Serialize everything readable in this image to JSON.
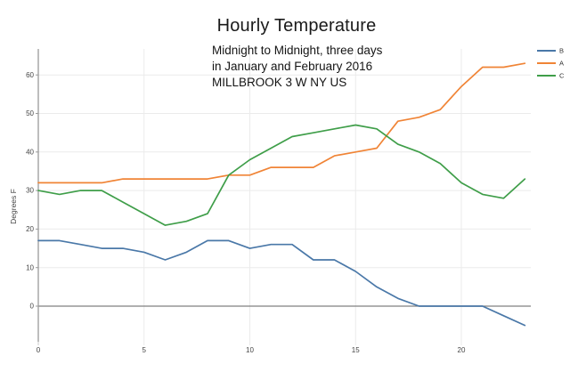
{
  "title": "Hourly Temperature",
  "chart_data": {
    "type": "line",
    "title": "Hourly Temperature",
    "subtitle_lines": [
      "Midnight to Midnight, three days",
      "in January and February 2016",
      "MILLBROOK 3 W NY US"
    ],
    "xlabel": "",
    "ylabel": "Degrees F",
    "x": [
      0,
      1,
      2,
      3,
      4,
      5,
      6,
      7,
      8,
      9,
      10,
      11,
      12,
      13,
      14,
      15,
      16,
      17,
      18,
      19,
      20,
      21,
      22,
      23
    ],
    "x_ticks": [
      0,
      5,
      10,
      15,
      20
    ],
    "y_ticks": [
      0,
      10,
      20,
      30,
      40,
      50,
      60
    ],
    "xlim": [
      0,
      23
    ],
    "ylim": [
      -9,
      67
    ],
    "grid": true,
    "zero_line": true,
    "legend_position": "top-right",
    "series": [
      {
        "name": "B",
        "color": "#4a78a8",
        "values": [
          17,
          17,
          16,
          15,
          15,
          14,
          12,
          14,
          17,
          17,
          15,
          16,
          16,
          12,
          12,
          9,
          5,
          2,
          0,
          0,
          0,
          0,
          -2.5,
          -5
        ]
      },
      {
        "name": "A",
        "color": "#f08436",
        "values": [
          32,
          32,
          32,
          32,
          33,
          33,
          33,
          33,
          33,
          34,
          34,
          36,
          36,
          36,
          39,
          40,
          41,
          48,
          49,
          51,
          57,
          62,
          62,
          63
        ]
      },
      {
        "name": "C",
        "color": "#3f9e49",
        "values": [
          30,
          29,
          30,
          30,
          27,
          24,
          21,
          22,
          24,
          34,
          38,
          41,
          44,
          45,
          46,
          47,
          46,
          42,
          40,
          37,
          32,
          29,
          28,
          33
        ]
      }
    ],
    "axis_color": "#9a9a9a",
    "zero_line_color": "#808080",
    "grid_color": "#ebebeb",
    "tick_label_color": "#444444"
  }
}
